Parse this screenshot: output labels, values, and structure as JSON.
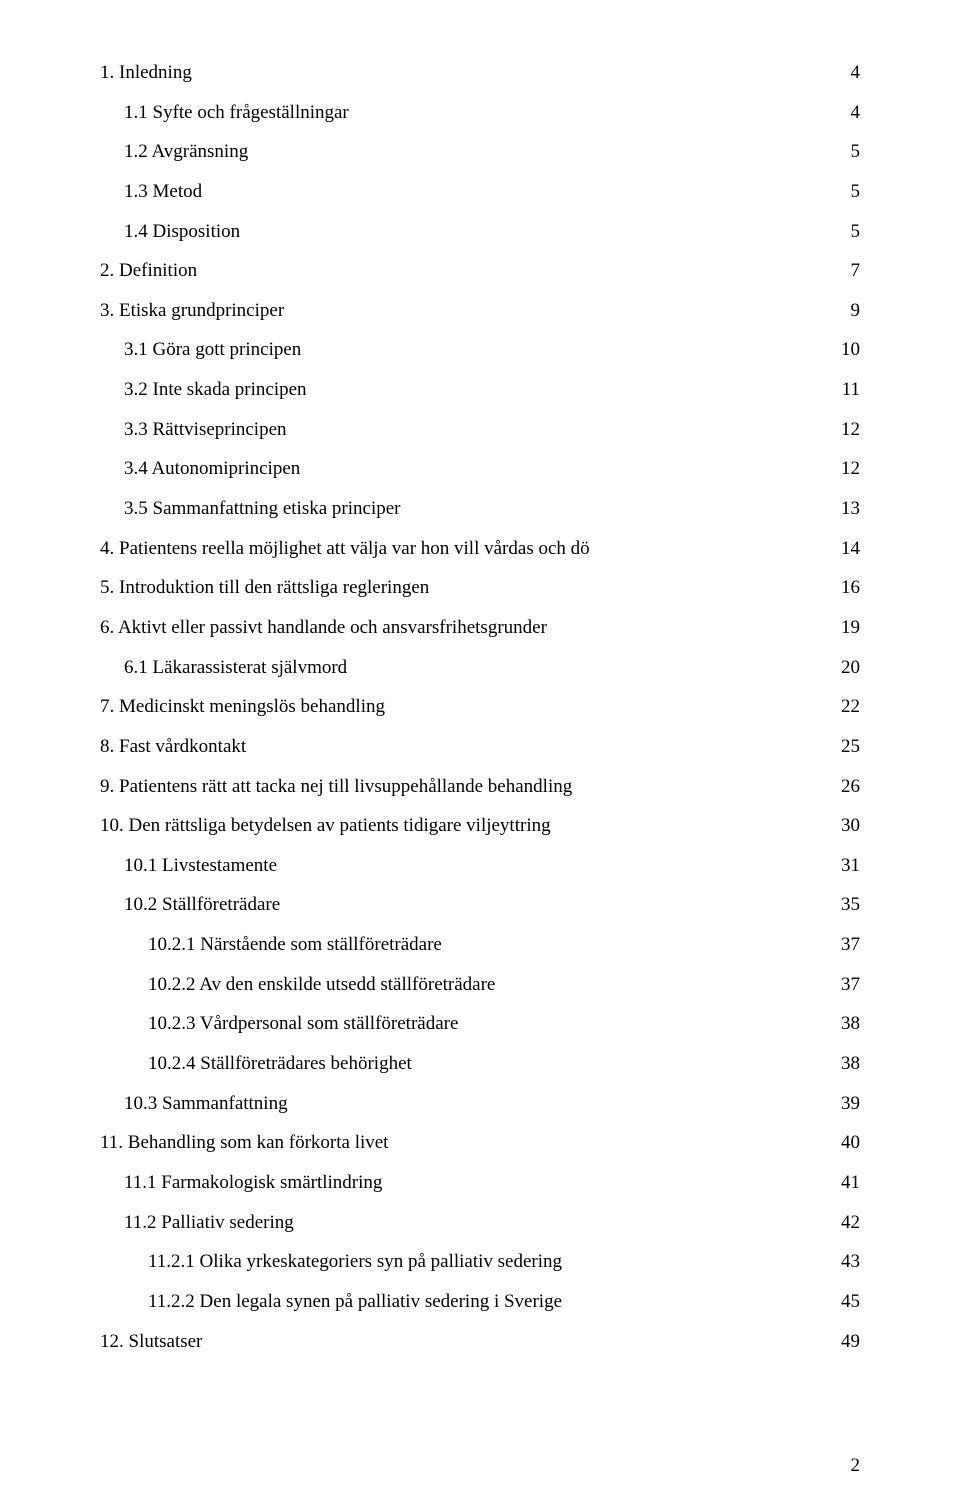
{
  "pageNumber": "2",
  "toc": [
    {
      "indent": 0,
      "label": "1. Inledning",
      "page": "4"
    },
    {
      "indent": 1,
      "label": "1.1 Syfte och frågeställningar",
      "page": "4"
    },
    {
      "indent": 1,
      "label": "1.2 Avgränsning",
      "page": "5"
    },
    {
      "indent": 1,
      "label": "1.3 Metod",
      "page": "5"
    },
    {
      "indent": 1,
      "label": "1.4 Disposition",
      "page": "5"
    },
    {
      "indent": 0,
      "label": "2. Definition",
      "page": "7"
    },
    {
      "indent": 0,
      "label": "3. Etiska grundprinciper",
      "page": "9"
    },
    {
      "indent": 1,
      "label": "3.1 Göra gott principen",
      "page": "10"
    },
    {
      "indent": 1,
      "label": "3.2 Inte skada principen",
      "page": "11"
    },
    {
      "indent": 1,
      "label": "3.3 Rättviseprincipen",
      "page": "12"
    },
    {
      "indent": 1,
      "label": "3.4 Autonomiprincipen",
      "page": "12"
    },
    {
      "indent": 1,
      "label": "3.5 Sammanfattning etiska principer",
      "page": "13"
    },
    {
      "indent": 0,
      "label": "4. Patientens reella möjlighet att välja var hon vill vårdas och dö",
      "page": "14"
    },
    {
      "indent": 0,
      "label": "5. Introduktion till den rättsliga regleringen",
      "page": "16"
    },
    {
      "indent": 0,
      "label": "6. Aktivt eller passivt handlande och ansvarsfrihetsgrunder",
      "page": "19"
    },
    {
      "indent": 1,
      "label": "6.1 Läkarassisterat självmord",
      "page": "20"
    },
    {
      "indent": 0,
      "label": "7. Medicinskt meningslös behandling",
      "page": "22"
    },
    {
      "indent": 0,
      "label": "8. Fast vårdkontakt",
      "page": "25"
    },
    {
      "indent": 0,
      "label": "9. Patientens rätt att tacka nej till livsuppehållande behandling",
      "page": "26"
    },
    {
      "indent": 0,
      "label": "10. Den rättsliga betydelsen av patients tidigare viljeyttring",
      "page": "30"
    },
    {
      "indent": 1,
      "label": "10.1 Livstestamente",
      "page": "31"
    },
    {
      "indent": 1,
      "label": "10.2 Ställföreträdare",
      "page": "35"
    },
    {
      "indent": 2,
      "label": "10.2.1 Närstående som ställföreträdare",
      "page": "37"
    },
    {
      "indent": 2,
      "label": "10.2.2 Av den enskilde utsedd ställföreträdare",
      "page": "37"
    },
    {
      "indent": 2,
      "label": "10.2.3 Vårdpersonal som ställföreträdare",
      "page": "38"
    },
    {
      "indent": 2,
      "label": "10.2.4 Ställföreträdares behörighet",
      "page": "38"
    },
    {
      "indent": 1,
      "label": "10.3 Sammanfattning",
      "page": "39"
    },
    {
      "indent": 0,
      "label": "11. Behandling som kan förkorta livet",
      "page": "40"
    },
    {
      "indent": 1,
      "label": "11.1 Farmakologisk smärtlindring",
      "page": "41"
    },
    {
      "indent": 1,
      "label": "11.2 Palliativ sedering",
      "page": "42"
    },
    {
      "indent": 2,
      "label": "11.2.1 Olika yrkeskategoriers syn på palliativ sedering",
      "page": "43"
    },
    {
      "indent": 2,
      "label": "11.2.2 Den legala synen på palliativ sedering i Sverige",
      "page": "45"
    },
    {
      "indent": 0,
      "label": "12. Slutsatser",
      "page": "49"
    }
  ]
}
